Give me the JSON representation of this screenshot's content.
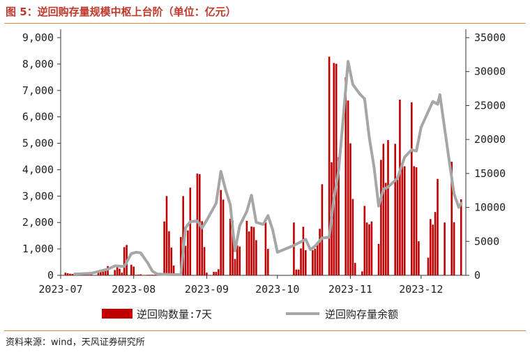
{
  "header": {
    "title": "图 5：逆回购存量规模中枢上台阶（单位：亿元）"
  },
  "footer": {
    "source": "资料来源：wind，天风证券研究所"
  },
  "colors": {
    "bar": "#c00000",
    "line": "#a6a6a6",
    "title": "#c0392b",
    "rule": "#e08a3a"
  },
  "chart_data": {
    "type": "bar",
    "title": "",
    "x_ticks": [
      "2023-07",
      "2023-08",
      "2023-09",
      "2023-10",
      "2023-11",
      "2023-12"
    ],
    "y_left": {
      "range": [
        0,
        9000
      ],
      "ticks": [
        "0",
        "1,000",
        "2,000",
        "3,000",
        "4,000",
        "5,000",
        "6,000",
        "7,000",
        "8,000",
        "9,000"
      ]
    },
    "y_right": {
      "range": [
        0,
        35000
      ],
      "ticks": [
        "0",
        "5000",
        "10000",
        "15000",
        "20000",
        "25000",
        "30000",
        "35000"
      ]
    },
    "x_range": [
      "2023-07-01",
      "2023-12-20"
    ],
    "series": [
      {
        "name": "逆回购数量:7天",
        "axis": "left",
        "type": "bar",
        "points": [
          [
            "2023-07-03",
            100
          ],
          [
            "2023-07-04",
            80
          ],
          [
            "2023-07-05",
            60
          ],
          [
            "2023-07-06",
            50
          ],
          [
            "2023-07-07",
            40
          ],
          [
            "2023-07-10",
            30
          ],
          [
            "2023-07-11",
            20
          ],
          [
            "2023-07-12",
            20
          ],
          [
            "2023-07-13",
            20
          ],
          [
            "2023-07-14",
            40
          ],
          [
            "2023-07-17",
            100
          ],
          [
            "2023-07-18",
            200
          ],
          [
            "2023-07-19",
            230
          ],
          [
            "2023-07-20",
            180
          ],
          [
            "2023-07-21",
            350
          ],
          [
            "2023-07-24",
            200
          ],
          [
            "2023-07-25",
            300
          ],
          [
            "2023-07-26",
            250
          ],
          [
            "2023-07-27",
            100
          ],
          [
            "2023-07-28",
            1070
          ],
          [
            "2023-07-29",
            1150
          ],
          [
            "2023-07-31",
            400
          ],
          [
            "2023-08-01",
            330
          ],
          [
            "2023-08-02",
            20
          ],
          [
            "2023-08-03",
            30
          ],
          [
            "2023-08-04",
            40
          ],
          [
            "2023-08-07",
            20
          ],
          [
            "2023-08-08",
            20
          ],
          [
            "2023-08-09",
            20
          ],
          [
            "2023-08-10",
            20
          ],
          [
            "2023-08-11",
            20
          ],
          [
            "2023-08-14",
            2040
          ],
          [
            "2023-08-15",
            3000
          ],
          [
            "2023-08-16",
            1670
          ],
          [
            "2023-08-17",
            1050
          ],
          [
            "2023-08-18",
            370
          ],
          [
            "2023-08-21",
            1450
          ],
          [
            "2023-08-22",
            3000
          ],
          [
            "2023-08-23",
            1120
          ],
          [
            "2023-08-24",
            1700
          ],
          [
            "2023-08-25",
            3320
          ],
          [
            "2023-08-28",
            3850
          ],
          [
            "2023-08-29",
            3830
          ],
          [
            "2023-08-30",
            2050
          ],
          [
            "2023-08-31",
            1070
          ],
          [
            "2023-09-01",
            100
          ],
          [
            "2023-09-04",
            130
          ],
          [
            "2023-09-05",
            130
          ],
          [
            "2023-09-06",
            230
          ],
          [
            "2023-09-07",
            3230
          ],
          [
            "2023-09-08",
            2870
          ],
          [
            "2023-09-11",
            2140
          ],
          [
            "2023-09-12",
            2070
          ],
          [
            "2023-09-13",
            620
          ],
          [
            "2023-09-14",
            1130
          ],
          [
            "2023-09-15",
            1090
          ],
          [
            "2023-09-18",
            2060
          ],
          [
            "2023-09-19",
            1660
          ],
          [
            "2023-09-20",
            1850
          ],
          [
            "2023-09-21",
            1830
          ],
          [
            "2023-09-22",
            1330
          ],
          [
            "2023-09-26",
            2000
          ],
          [
            "2023-09-27",
            1000
          ],
          [
            "2023-10-08",
            2000
          ],
          [
            "2023-10-09",
            220
          ],
          [
            "2023-10-10",
            220
          ],
          [
            "2023-10-11",
            1020
          ],
          [
            "2023-10-12",
            1840
          ],
          [
            "2023-10-13",
            950
          ],
          [
            "2023-10-16",
            950
          ],
          [
            "2023-10-17",
            1010
          ],
          [
            "2023-10-18",
            1260
          ],
          [
            "2023-10-19",
            1760
          ],
          [
            "2023-10-20",
            3450
          ],
          [
            "2023-10-23",
            8280
          ],
          [
            "2023-10-24",
            4280
          ],
          [
            "2023-10-25",
            8040
          ],
          [
            "2023-10-26",
            8010
          ],
          [
            "2023-10-27",
            4470
          ],
          [
            "2023-10-30",
            7500
          ],
          [
            "2023-10-31",
            6620
          ],
          [
            "2023-11-01",
            5000
          ],
          [
            "2023-11-02",
            2890
          ],
          [
            "2023-11-03",
            470
          ],
          [
            "2023-11-06",
            150
          ],
          [
            "2023-11-07",
            2630
          ],
          [
            "2023-11-08",
            2000
          ],
          [
            "2023-11-09",
            1930
          ],
          [
            "2023-11-10",
            2040
          ],
          [
            "2023-11-13",
            1190
          ],
          [
            "2023-11-14",
            4370
          ],
          [
            "2023-11-15",
            4980
          ],
          [
            "2023-11-16",
            3500
          ],
          [
            "2023-11-17",
            5120
          ],
          [
            "2023-11-20",
            4980
          ],
          [
            "2023-11-21",
            3620
          ],
          [
            "2023-11-22",
            6650
          ],
          [
            "2023-11-23",
            4230
          ],
          [
            "2023-11-24",
            4130
          ],
          [
            "2023-11-27",
            6550
          ],
          [
            "2023-11-28",
            4130
          ],
          [
            "2023-11-29",
            4090
          ],
          [
            "2023-11-30",
            1290
          ],
          [
            "2023-12-04",
            670
          ],
          [
            "2023-12-05",
            2130
          ],
          [
            "2023-12-06",
            1920
          ],
          [
            "2023-12-07",
            2400
          ],
          [
            "2023-12-08",
            3650
          ],
          [
            "2023-12-11",
            2000
          ],
          [
            "2023-12-14",
            4300
          ],
          [
            "2023-12-15",
            2010
          ],
          [
            "2023-12-18",
            2880
          ]
        ]
      },
      {
        "name": "逆回购存量余额",
        "axis": "right",
        "type": "line",
        "points": [
          [
            "2023-07-07",
            200
          ],
          [
            "2023-07-14",
            300
          ],
          [
            "2023-07-21",
            900
          ],
          [
            "2023-07-24",
            1400
          ],
          [
            "2023-07-28",
            1300
          ],
          [
            "2023-07-31",
            3200
          ],
          [
            "2023-08-02",
            3400
          ],
          [
            "2023-08-04",
            3300
          ],
          [
            "2023-08-07",
            1800
          ],
          [
            "2023-08-09",
            600
          ],
          [
            "2023-08-11",
            200
          ],
          [
            "2023-08-18",
            100
          ],
          [
            "2023-08-21",
            100
          ],
          [
            "2023-08-23",
            7000
          ],
          [
            "2023-08-25",
            7900
          ],
          [
            "2023-08-28",
            8000
          ],
          [
            "2023-08-30",
            7000
          ],
          [
            "2023-09-01",
            8100
          ],
          [
            "2023-09-05",
            10600
          ],
          [
            "2023-09-07",
            15300
          ],
          [
            "2023-09-09",
            12600
          ],
          [
            "2023-09-11",
            10400
          ],
          [
            "2023-09-13",
            3600
          ],
          [
            "2023-09-15",
            7300
          ],
          [
            "2023-09-18",
            9400
          ],
          [
            "2023-09-20",
            11800
          ],
          [
            "2023-09-22",
            7800
          ],
          [
            "2023-09-25",
            7500
          ],
          [
            "2023-09-27",
            8800
          ],
          [
            "2023-09-29",
            6700
          ],
          [
            "2023-10-01",
            3400
          ],
          [
            "2023-10-08",
            4400
          ],
          [
            "2023-10-13",
            5300
          ],
          [
            "2023-10-15",
            3800
          ],
          [
            "2023-10-17",
            4300
          ],
          [
            "2023-10-20",
            5500
          ],
          [
            "2023-10-23",
            5600
          ],
          [
            "2023-10-25",
            11300
          ],
          [
            "2023-10-27",
            15500
          ],
          [
            "2023-10-29",
            23300
          ],
          [
            "2023-10-31",
            31500
          ],
          [
            "2023-11-02",
            28100
          ],
          [
            "2023-11-05",
            26700
          ],
          [
            "2023-11-07",
            26000
          ],
          [
            "2023-11-09",
            20300
          ],
          [
            "2023-11-11",
            16000
          ],
          [
            "2023-11-13",
            10200
          ],
          [
            "2023-11-15",
            12700
          ],
          [
            "2023-11-17",
            13000
          ],
          [
            "2023-11-21",
            14300
          ],
          [
            "2023-11-24",
            17400
          ],
          [
            "2023-11-27",
            18500
          ],
          [
            "2023-11-29",
            18300
          ],
          [
            "2023-12-01",
            21800
          ],
          [
            "2023-12-04",
            24100
          ],
          [
            "2023-12-06",
            25600
          ],
          [
            "2023-12-08",
            25200
          ],
          [
            "2023-12-09",
            26600
          ],
          [
            "2023-12-11",
            21600
          ],
          [
            "2023-12-13",
            16700
          ],
          [
            "2023-12-15",
            12000
          ],
          [
            "2023-12-17",
            10000
          ],
          [
            "2023-12-18",
            10600
          ]
        ]
      }
    ],
    "legend": {
      "position": "bottom-center"
    }
  }
}
